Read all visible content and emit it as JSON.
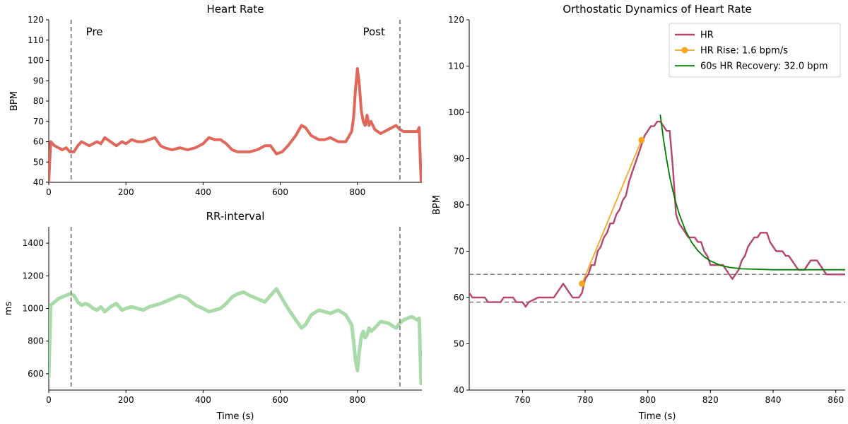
{
  "chart_data": [
    {
      "type": "line",
      "title": "Heart Rate",
      "xlabel": "",
      "ylabel": "BPM",
      "xlim": [
        0,
        967
      ],
      "ylim": [
        40,
        120
      ],
      "xticks": [
        0,
        200,
        400,
        600,
        800
      ],
      "yticks": [
        40,
        50,
        60,
        70,
        80,
        90,
        100,
        110,
        120
      ],
      "vlines": [
        {
          "x": 58,
          "label": "Pre"
        },
        {
          "x": 910,
          "label": "Post"
        }
      ],
      "series": [
        {
          "color": "#e0675a",
          "x": [
            0,
            5,
            15,
            25,
            35,
            45,
            55,
            65,
            75,
            85,
            95,
            105,
            115,
            125,
            135,
            145,
            160,
            175,
            190,
            200,
            215,
            230,
            245,
            260,
            275,
            290,
            300,
            320,
            340,
            360,
            380,
            400,
            415,
            430,
            445,
            460,
            475,
            490,
            505,
            520,
            540,
            560,
            575,
            590,
            605,
            620,
            640,
            655,
            665,
            680,
            700,
            715,
            730,
            750,
            770,
            785,
            790,
            795,
            800,
            805,
            810,
            815,
            820,
            825,
            830,
            835,
            845,
            860,
            880,
            900,
            910,
            920,
            940,
            955,
            960,
            965
          ],
          "values": [
            40,
            60,
            58,
            57,
            56,
            57,
            55,
            55,
            58,
            60,
            59,
            58,
            59,
            60,
            59,
            62,
            60,
            58,
            60,
            59,
            61,
            60,
            60,
            61,
            62,
            58,
            57,
            56,
            57,
            56,
            57,
            59,
            62,
            61,
            61,
            59,
            56,
            55,
            55,
            55,
            56,
            58,
            58,
            54,
            55,
            58,
            63,
            68,
            67,
            63,
            61,
            61,
            62,
            60,
            60,
            65,
            72,
            86,
            96,
            88,
            75,
            70,
            68,
            73,
            68,
            70,
            66,
            64,
            66,
            68,
            66,
            65,
            65,
            65,
            67,
            40
          ]
        }
      ]
    },
    {
      "type": "line",
      "title": "RR-interval",
      "xlabel": "Time (s)",
      "ylabel": "ms",
      "xlim": [
        0,
        967
      ],
      "ylim": [
        500,
        1500
      ],
      "xticks": [
        0,
        200,
        400,
        600,
        800
      ],
      "yticks": [
        600,
        800,
        1000,
        1200,
        1400
      ],
      "vlines": [
        {
          "x": 58
        },
        {
          "x": 910
        }
      ],
      "series": [
        {
          "color": "#a8dba8",
          "x": [
            0,
            5,
            15,
            25,
            35,
            45,
            55,
            65,
            75,
            85,
            95,
            105,
            115,
            125,
            135,
            145,
            160,
            175,
            190,
            200,
            215,
            230,
            245,
            260,
            275,
            290,
            300,
            320,
            340,
            360,
            380,
            400,
            415,
            430,
            445,
            460,
            475,
            490,
            505,
            520,
            540,
            560,
            575,
            590,
            605,
            620,
            640,
            655,
            665,
            680,
            700,
            715,
            730,
            750,
            770,
            785,
            790,
            795,
            800,
            805,
            810,
            815,
            820,
            825,
            830,
            835,
            845,
            860,
            880,
            900,
            910,
            920,
            940,
            955,
            960,
            965
          ],
          "values": [
            580,
            1020,
            1040,
            1060,
            1070,
            1080,
            1090,
            1080,
            1040,
            1020,
            1030,
            1020,
            1000,
            990,
            1010,
            980,
            1010,
            1030,
            990,
            1000,
            1010,
            1000,
            990,
            1010,
            1020,
            1030,
            1040,
            1060,
            1080,
            1060,
            1020,
            1000,
            980,
            990,
            1000,
            1030,
            1070,
            1090,
            1100,
            1080,
            1060,
            1040,
            1080,
            1120,
            1060,
            1000,
            930,
            880,
            900,
            960,
            990,
            980,
            970,
            990,
            960,
            900,
            800,
            680,
            620,
            740,
            830,
            860,
            820,
            840,
            880,
            860,
            880,
            920,
            910,
            880,
            910,
            930,
            950,
            930,
            940,
            540
          ]
        }
      ]
    },
    {
      "type": "line",
      "title": "Orthostatic Dynamics of Heart Rate",
      "xlabel": "Time (s)",
      "ylabel": "BPM",
      "xlim": [
        743,
        863
      ],
      "ylim": [
        40,
        120
      ],
      "xticks": [
        760,
        780,
        800,
        820,
        840,
        860
      ],
      "yticks": [
        40,
        50,
        60,
        70,
        80,
        90,
        100,
        110,
        120
      ],
      "hlines": [
        59,
        65
      ],
      "legend_position": "top-right",
      "series": [
        {
          "name": "HR",
          "color": "#b5446e",
          "x": [
            743,
            744,
            748,
            749,
            750,
            753,
            754,
            757,
            758,
            760,
            761,
            762,
            765,
            768,
            770,
            773,
            776,
            778,
            779,
            780,
            781,
            782,
            783,
            784,
            785,
            786,
            787,
            788,
            789,
            790,
            791,
            792,
            793,
            794,
            795,
            796,
            797,
            798,
            799,
            800,
            801,
            802,
            803,
            804,
            805,
            806,
            807,
            808,
            809,
            810,
            812,
            813,
            815,
            816,
            817,
            818,
            819,
            820,
            824,
            825,
            826,
            827,
            828,
            829,
            830,
            831,
            832,
            833,
            834,
            835,
            836,
            837,
            838,
            839,
            840,
            841,
            842,
            843,
            844,
            845,
            846,
            847,
            848,
            849,
            850,
            851,
            852,
            853,
            854,
            855,
            856,
            857,
            863
          ],
          "values": [
            61,
            60,
            60,
            59,
            59,
            59,
            60,
            60,
            59,
            59,
            58,
            59,
            60,
            60,
            60,
            63,
            60,
            60,
            61,
            64,
            65,
            67,
            67,
            70,
            71,
            73,
            74,
            76,
            76,
            78,
            79,
            81,
            82,
            85,
            87,
            89,
            91,
            93,
            95,
            96,
            97,
            97,
            98,
            98,
            97,
            96,
            96,
            88,
            78,
            76,
            74,
            73,
            73,
            72,
            72,
            70,
            69,
            67,
            67,
            66,
            65,
            64,
            65,
            66,
            68,
            69,
            71,
            72,
            73,
            73,
            74,
            74,
            74,
            72,
            71,
            70,
            70,
            70,
            69,
            69,
            68,
            67,
            66,
            66,
            66,
            67,
            68,
            68,
            68,
            67,
            66,
            65,
            65
          ]
        },
        {
          "name": "HR Rise: 1.6 bpm/s",
          "color": "#f5a623",
          "markers": true,
          "x": [
            779,
            798
          ],
          "values": [
            63,
            94
          ]
        },
        {
          "name": "60s HR Recovery: 32.0 bpm",
          "color": "#008000",
          "x": [
            804,
            805,
            806,
            807,
            808,
            809,
            810,
            812,
            814,
            816,
            818,
            820,
            823,
            826,
            830,
            835,
            840,
            845,
            850,
            855,
            863
          ],
          "values": [
            99.4,
            94.2,
            89.9,
            86.1,
            83.0,
            80.4,
            78.1,
            74.5,
            71.9,
            70.1,
            68.8,
            67.9,
            67.0,
            66.5,
            66.2,
            66.1,
            66.0,
            66.0,
            66.0,
            66.0,
            66.0
          ]
        }
      ]
    }
  ]
}
